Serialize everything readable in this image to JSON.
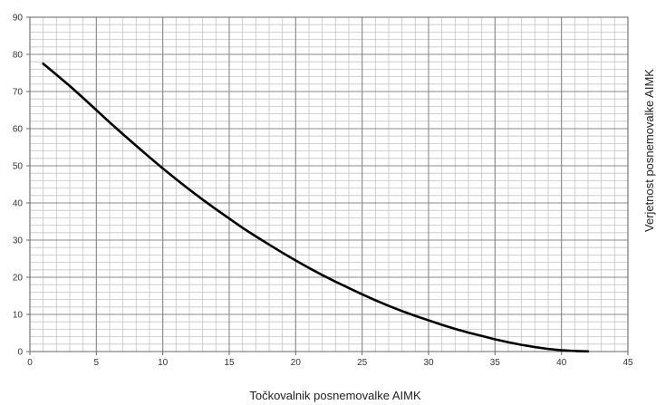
{
  "chart_data": {
    "type": "line",
    "xlabel": "Točkovalnik posnemovalke AIMK",
    "ylabel": "Verjetnost posnemovalke AIMK",
    "xlim": [
      0,
      45
    ],
    "ylim": [
      0,
      90
    ],
    "x_ticks": [
      "0",
      "5",
      "10",
      "15",
      "20",
      "25",
      "30",
      "35",
      "40",
      "45"
    ],
    "y_ticks": [
      "0",
      "10",
      "20",
      "30",
      "40",
      "50",
      "60",
      "70",
      "80",
      "90"
    ],
    "x_minor_step": 1,
    "y_minor_step": 2,
    "grid": true,
    "legend": "none",
    "series": [
      {
        "x": [
          1,
          2,
          3,
          4,
          5,
          6,
          7,
          8,
          9,
          10,
          11,
          12,
          13,
          14,
          15,
          16,
          17,
          18,
          19,
          20,
          21,
          22,
          23,
          24,
          25,
          26,
          27,
          28,
          29,
          30,
          31,
          32,
          33,
          34,
          35,
          36,
          37,
          38,
          39,
          40,
          41,
          42
        ],
        "y": [
          77.5,
          74.5,
          71.5,
          68.3,
          65.0,
          61.7,
          58.5,
          55.4,
          52.3,
          49.3,
          46.4,
          43.6,
          40.9,
          38.3,
          35.8,
          33.3,
          31.0,
          28.8,
          26.6,
          24.5,
          22.5,
          20.6,
          18.8,
          17.1,
          15.4,
          13.8,
          12.3,
          10.9,
          9.6,
          8.4,
          7.2,
          6.1,
          5.1,
          4.2,
          3.3,
          2.5,
          1.8,
          1.2,
          0.7,
          0.35,
          0.15,
          0.05
        ],
        "color": "#000000"
      }
    ]
  }
}
